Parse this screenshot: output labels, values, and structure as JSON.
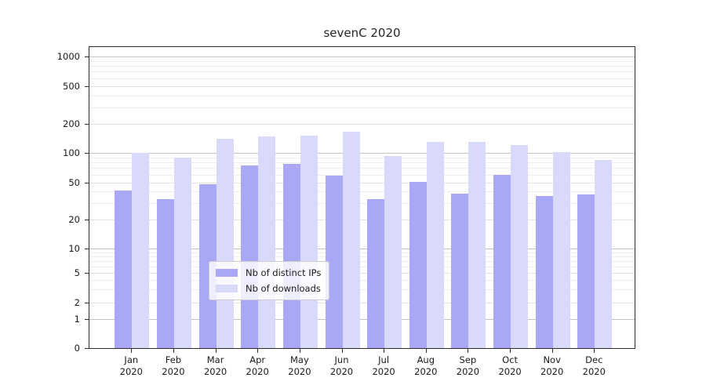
{
  "title": "sevenC 2020",
  "legend": {
    "items": [
      {
        "label": "Nb of distinct IPs",
        "color": "#a8a8f7"
      },
      {
        "label": "Nb of downloads",
        "color": "#d9d9fa"
      }
    ]
  },
  "chart_data": {
    "type": "bar",
    "title": "sevenC 2020",
    "categories": [
      "Jan 2020",
      "Feb 2020",
      "Mar 2020",
      "Apr 2020",
      "May 2020",
      "Jun 2020",
      "Jul 2020",
      "Aug 2020",
      "Sep 2020",
      "Oct 2020",
      "Nov 2020",
      "Dec 2020"
    ],
    "series": [
      {
        "name": "Nb of distinct IPs",
        "color": "#a8a8f7",
        "values": [
          41,
          33,
          48,
          74,
          78,
          59,
          33,
          51,
          38,
          60,
          36,
          37
        ]
      },
      {
        "name": "Nb of downloads",
        "color": "#d9d9fa",
        "values": [
          101,
          90,
          140,
          148,
          152,
          168,
          93,
          130,
          130,
          120,
          102,
          85
        ]
      }
    ],
    "xlabel": "",
    "ylabel": "",
    "yscale": "symlog",
    "yticks": [
      0,
      1,
      2,
      5,
      10,
      20,
      50,
      100,
      200,
      500,
      1000
    ],
    "ylim": [
      0,
      1270
    ],
    "grid": true,
    "legend_position": "lower center"
  },
  "colors": {
    "axis": "#2b2b2b",
    "grid_major": "#c2c2c2",
    "grid_minor": "#e2e2e2",
    "background": "#ffffff"
  }
}
